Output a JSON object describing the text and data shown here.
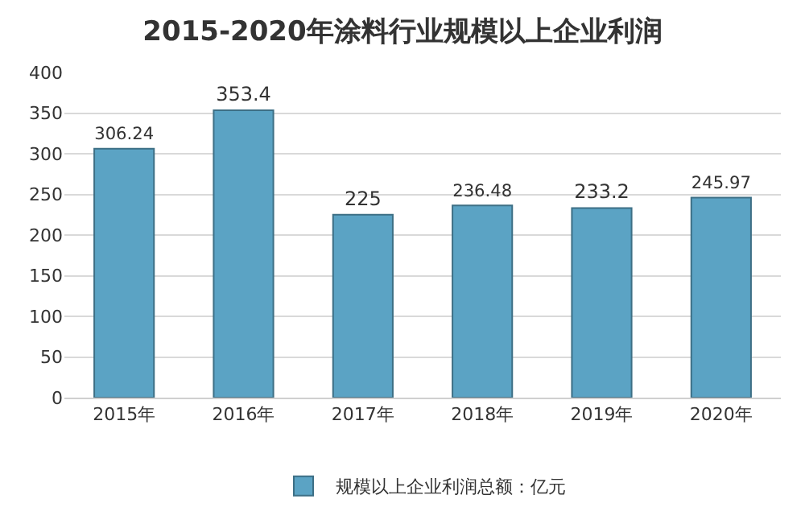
{
  "chart_data": {
    "type": "bar",
    "title": "2015-2020年涂料行业规模以上企业利润",
    "categories": [
      "2015年",
      "2016年",
      "2017年",
      "2018年",
      "2019年",
      "2020年"
    ],
    "series": [
      {
        "name": "规模以上企业利润总额：亿元",
        "color": "#5ba3c4",
        "values": [
          306.24,
          353.4,
          225,
          236.48,
          233.2,
          245.97
        ]
      }
    ],
    "value_labels": [
      "306.24",
      "353.4",
      "225",
      "236.48",
      "233.2",
      "245.97"
    ],
    "ylim": [
      0,
      400
    ],
    "yticks": [
      0,
      50,
      100,
      150,
      200,
      250,
      300,
      350,
      400
    ],
    "grid": "y",
    "legend": "bottom"
  }
}
